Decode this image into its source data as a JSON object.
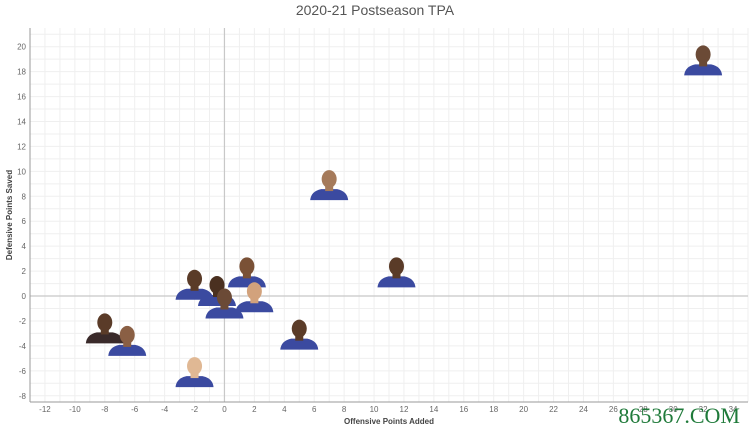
{
  "chart_data": {
    "type": "scatter",
    "title": "2020-21 Postseason TPA",
    "xlabel": "Offensive Points Added",
    "ylabel": "Defensive Points Saved",
    "xlim": [
      -13,
      35
    ],
    "ylim": [
      -8.5,
      21.5
    ],
    "xticks": [
      -12,
      -10,
      -8,
      -6,
      -4,
      -2,
      0,
      2,
      4,
      6,
      8,
      10,
      12,
      14,
      16,
      18,
      20,
      22,
      24,
      26,
      28,
      30,
      32,
      34
    ],
    "yticks": [
      -8,
      -6,
      -4,
      -2,
      0,
      2,
      4,
      6,
      8,
      10,
      12,
      14,
      16,
      18,
      20
    ],
    "grid": true,
    "points": [
      {
        "x": 32.0,
        "y": 18.5,
        "skin": "#6b4a36",
        "jersey": "#3b4aa0"
      },
      {
        "x": 7.0,
        "y": 8.5,
        "skin": "#a57a5a",
        "jersey": "#3b4aa0"
      },
      {
        "x": 11.5,
        "y": 1.5,
        "skin": "#5a3b28",
        "jersey": "#3b4aa0"
      },
      {
        "x": 1.5,
        "y": 1.5,
        "skin": "#7a5136",
        "jersey": "#3b4aa0"
      },
      {
        "x": -2.0,
        "y": 0.5,
        "skin": "#5a3b28",
        "jersey": "#3b4aa0"
      },
      {
        "x": -0.5,
        "y": 0.0,
        "skin": "#4a3020",
        "jersey": "#3b4aa0"
      },
      {
        "x": 2.0,
        "y": -0.5,
        "skin": "#d2a27c",
        "jersey": "#3b4aa0"
      },
      {
        "x": 0.0,
        "y": -1.0,
        "skin": "#6b4a36",
        "jersey": "#3b4aa0"
      },
      {
        "x": 5.0,
        "y": -3.5,
        "skin": "#5a3b28",
        "jersey": "#3b4aa0"
      },
      {
        "x": -8.0,
        "y": -3.0,
        "skin": "#5a3b28",
        "jersey": "#3a2a2a"
      },
      {
        "x": -6.5,
        "y": -4.0,
        "skin": "#8a5f44",
        "jersey": "#3b4aa0"
      },
      {
        "x": -2.0,
        "y": -6.5,
        "skin": "#e0b894",
        "jersey": "#3b4aa0"
      }
    ]
  },
  "watermark": "865367.COM",
  "colors": {
    "grid": "#efefef",
    "axis": "#9a9a9a",
    "zero_line": "#c8c8c8"
  }
}
